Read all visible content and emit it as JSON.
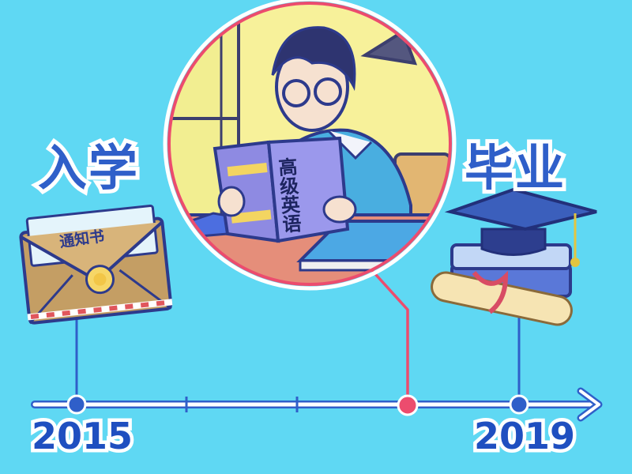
{
  "timeline": {
    "start_label": "入学",
    "end_label": "毕业",
    "start_year": "2015",
    "end_year": "2019"
  },
  "envelope": {
    "text": "通知书"
  },
  "book": {
    "title": "高级英语"
  },
  "colors": {
    "background": "#5fd8f3",
    "timeline_line": "#2f5fc9",
    "highlight": "#ec4c6e"
  }
}
